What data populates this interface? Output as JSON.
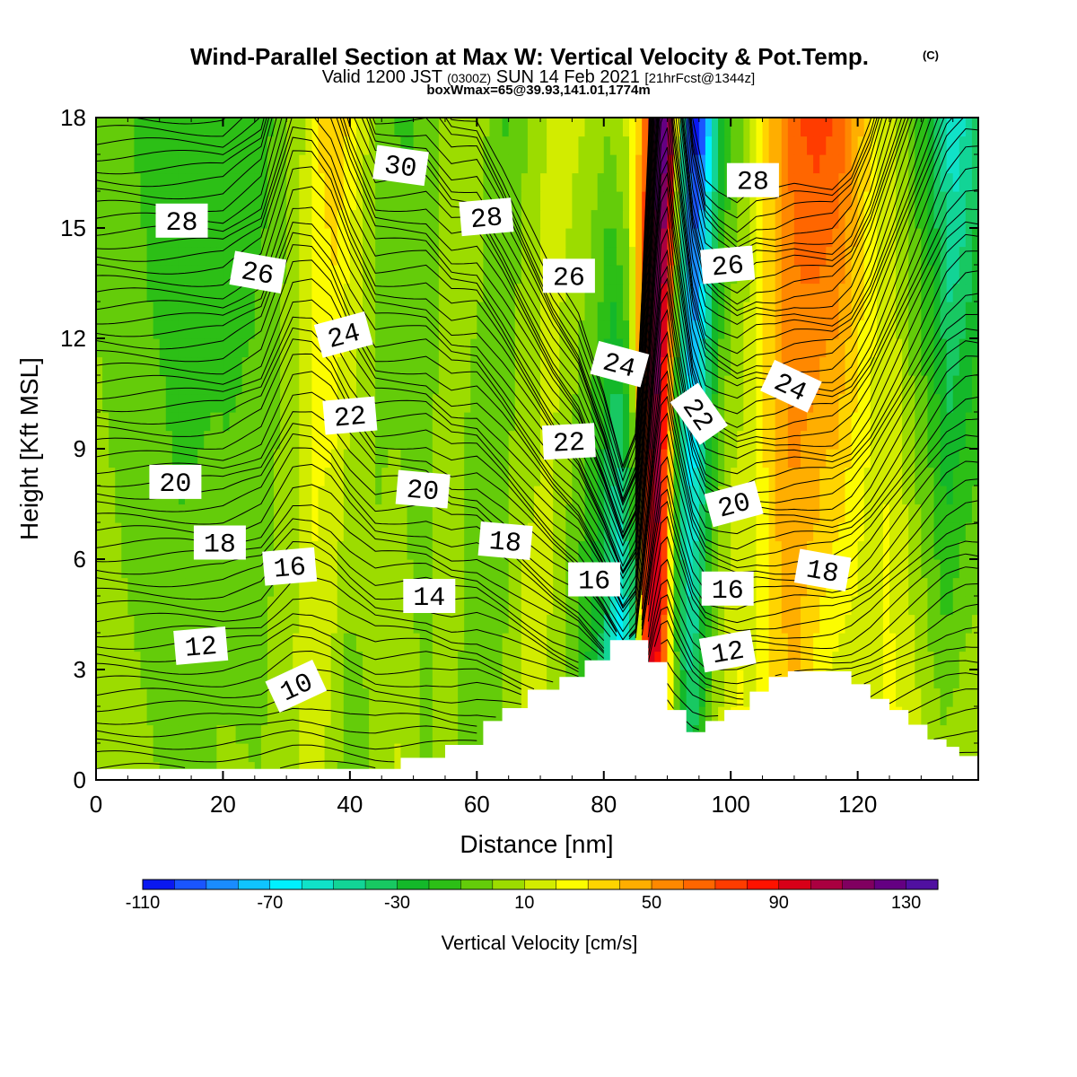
{
  "chart_data": {
    "type": "heatmap",
    "title": "Wind-Parallel Section at Max W: Vertical Velocity & Pot.Temp.",
    "title_mark": "(C)",
    "subtitle_main": "Valid 1200 JST",
    "subtitle_utc": "(0300Z)",
    "subtitle_date": "SUN 14 Feb 2021",
    "subtitle_fcst": "[21hrFcst@1344z]",
    "subtitle2": "boxWmax=65@39.93,141.01,1774m",
    "xlabel": "Distance [nm]",
    "ylabel": "Height [Kft MSL]",
    "xlim": [
      0,
      139
    ],
    "ylim": [
      0,
      18
    ],
    "x_ticks": [
      0,
      20,
      40,
      60,
      80,
      100,
      120
    ],
    "y_ticks": [
      0,
      3,
      6,
      9,
      12,
      15,
      18
    ],
    "colorbar": {
      "label": "Vertical Velocity [cm/s]",
      "range": [
        -110,
        150
      ],
      "step": 10,
      "tick_values": [
        -110,
        -70,
        -30,
        10,
        50,
        90,
        130
      ],
      "colors": [
        "#0a18f0",
        "#1a55ff",
        "#1a8cff",
        "#10c4ff",
        "#00f0ff",
        "#10e2c8",
        "#12d496",
        "#18c862",
        "#14b82a",
        "#2cbf16",
        "#64cc0a",
        "#9cdc00",
        "#d2ec00",
        "#fcfc00",
        "#ffd400",
        "#ffae00",
        "#ff8800",
        "#ff6600",
        "#ff3c00",
        "#ff1200",
        "#d80018",
        "#aa0040",
        "#800060",
        "#640082",
        "#5010a0"
      ]
    },
    "terrain": [
      [
        0,
        0.3
      ],
      [
        48,
        0.3
      ],
      [
        48,
        0.6
      ],
      [
        55,
        0.6
      ],
      [
        55,
        0.95
      ],
      [
        61,
        0.95
      ],
      [
        61,
        1.6
      ],
      [
        64,
        1.6
      ],
      [
        64,
        1.95
      ],
      [
        68,
        1.95
      ],
      [
        68,
        2.45
      ],
      [
        73,
        2.45
      ],
      [
        73,
        2.8
      ],
      [
        77,
        2.8
      ],
      [
        77,
        3.25
      ],
      [
        81,
        3.25
      ],
      [
        81,
        3.8
      ],
      [
        87,
        3.8
      ],
      [
        87,
        3.2
      ],
      [
        90,
        3.2
      ],
      [
        90,
        1.9
      ],
      [
        93,
        1.9
      ],
      [
        93,
        1.3
      ],
      [
        96,
        1.3
      ],
      [
        96,
        1.6
      ],
      [
        99,
        1.6
      ],
      [
        99,
        1.9
      ],
      [
        103,
        1.9
      ],
      [
        103,
        2.4
      ],
      [
        106,
        2.4
      ],
      [
        106,
        2.8
      ],
      [
        109,
        2.8
      ],
      [
        109,
        2.95
      ],
      [
        119,
        2.95
      ],
      [
        119,
        2.6
      ],
      [
        122,
        2.6
      ],
      [
        122,
        2.2
      ],
      [
        125,
        2.2
      ],
      [
        125,
        1.9
      ],
      [
        128,
        1.9
      ],
      [
        128,
        1.5
      ],
      [
        131,
        1.5
      ],
      [
        131,
        1.1
      ],
      [
        134,
        1.1
      ],
      [
        134,
        0.9
      ],
      [
        136,
        0.9
      ],
      [
        136,
        0.65
      ],
      [
        139,
        0.65
      ]
    ],
    "w_profile_x": [
      0,
      8,
      14,
      20,
      26,
      31,
      34,
      37,
      40,
      44,
      48,
      52,
      56,
      60,
      64,
      68,
      72,
      76,
      80,
      83,
      85,
      86.5,
      88,
      89.5,
      91,
      92.5,
      94,
      96,
      98,
      101,
      104,
      107,
      110,
      113,
      116,
      119,
      122,
      125,
      128,
      131,
      134,
      137,
      139
    ],
    "w_profile_low": [
      8,
      2,
      -5,
      2,
      0,
      8,
      18,
      6,
      -8,
      3,
      12,
      -2,
      5,
      -10,
      0,
      15,
      8,
      -15,
      -40,
      -90,
      -60,
      60,
      90,
      70,
      10,
      -15,
      -30,
      -10,
      10,
      25,
      18,
      28,
      38,
      22,
      8,
      10,
      12,
      25,
      20,
      10,
      5,
      12,
      10
    ],
    "w_profile_high": [
      -4,
      -14,
      -18,
      -20,
      -12,
      5,
      30,
      40,
      22,
      -8,
      -12,
      -5,
      10,
      2,
      -12,
      5,
      18,
      10,
      2,
      15,
      45,
      100,
      140,
      110,
      -20,
      -95,
      -110,
      -60,
      -20,
      0,
      25,
      55,
      70,
      75,
      70,
      45,
      20,
      10,
      -10,
      -30,
      -60,
      -45,
      -25
    ],
    "theta_slope": [
      1,
      1,
      1,
      1,
      1.05,
      1.25,
      1.25,
      1.2,
      1.1,
      1,
      1,
      1,
      0.95,
      0.95,
      0.88,
      0.8,
      0.72,
      0.66,
      0.55,
      0.45,
      0.5,
      0.8,
      1.15,
      1.45,
      1.25,
      1.1,
      0.95,
      0.86,
      0.84,
      0.82,
      0.84,
      0.84,
      0.85,
      0.85,
      0.85,
      0.88,
      0.95,
      1.05,
      1.15,
      1.25,
      1.35,
      1.4,
      1.4
    ],
    "theta_levels": [
      "10",
      "12",
      "14",
      "16",
      "18",
      "20",
      "22",
      "24",
      "26",
      "28",
      "30"
    ],
    "contour_labels": [
      {
        "text": "10",
        "x": 31.5,
        "y": 2.55,
        "angle": -25
      },
      {
        "text": "12",
        "x": 16.5,
        "y": 3.65,
        "angle": -5
      },
      {
        "text": "14",
        "x": 52.5,
        "y": 5.0,
        "angle": 0
      },
      {
        "text": "16",
        "x": 30.5,
        "y": 5.8,
        "angle": -5
      },
      {
        "text": "16",
        "x": 78.5,
        "y": 5.45,
        "angle": 0
      },
      {
        "text": "16",
        "x": 99.5,
        "y": 5.2,
        "angle": 0
      },
      {
        "text": "12",
        "x": 99.5,
        "y": 3.5,
        "angle": -10
      },
      {
        "text": "18",
        "x": 19.5,
        "y": 6.45,
        "angle": 0
      },
      {
        "text": "18",
        "x": 64.5,
        "y": 6.5,
        "angle": 5
      },
      {
        "text": "18",
        "x": 114.5,
        "y": 5.7,
        "angle": 10
      },
      {
        "text": "20",
        "x": 12.5,
        "y": 8.1,
        "angle": 0
      },
      {
        "text": "20",
        "x": 51.5,
        "y": 7.9,
        "angle": 5
      },
      {
        "text": "20",
        "x": 100.5,
        "y": 7.5,
        "angle": -15
      },
      {
        "text": "22",
        "x": 40,
        "y": 9.9,
        "angle": -5
      },
      {
        "text": "22",
        "x": 74.5,
        "y": 9.2,
        "angle": -3
      },
      {
        "text": "22",
        "x": 95,
        "y": 9.95,
        "angle": 55
      },
      {
        "text": "24",
        "x": 39,
        "y": 12.1,
        "angle": -15
      },
      {
        "text": "24",
        "x": 82.5,
        "y": 11.3,
        "angle": 15
      },
      {
        "text": "24",
        "x": 109.5,
        "y": 10.7,
        "angle": 25
      },
      {
        "text": "26",
        "x": 25.5,
        "y": 13.8,
        "angle": 10
      },
      {
        "text": "26",
        "x": 74.5,
        "y": 13.7,
        "angle": 0
      },
      {
        "text": "26",
        "x": 99.5,
        "y": 14.0,
        "angle": -5
      },
      {
        "text": "28",
        "x": 13.5,
        "y": 15.2,
        "angle": 0
      },
      {
        "text": "28",
        "x": 61.5,
        "y": 15.3,
        "angle": -5
      },
      {
        "text": "28",
        "x": 103.5,
        "y": 16.3,
        "angle": 0
      },
      {
        "text": "30",
        "x": 48,
        "y": 16.7,
        "angle": 8
      }
    ]
  }
}
